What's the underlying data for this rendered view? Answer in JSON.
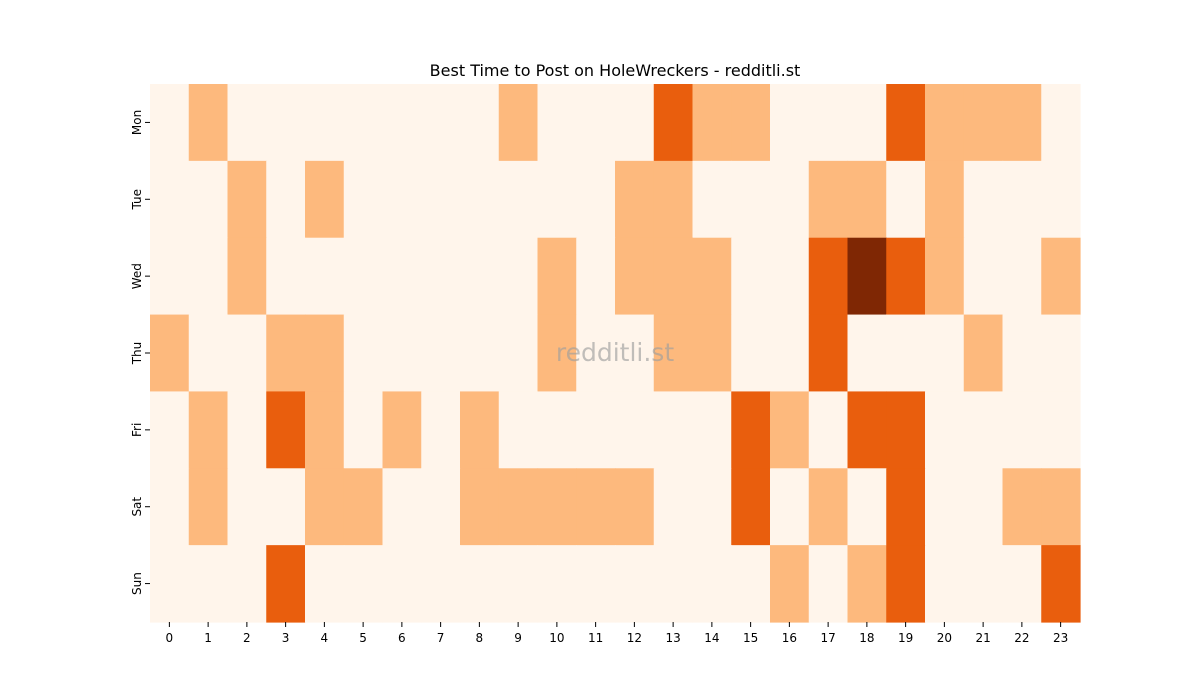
{
  "chart_data": {
    "type": "heatmap",
    "title": "Best Time to Post on HoleWreckers - redditli.st",
    "xlabel": "",
    "ylabel": "",
    "x_categories": [
      "0",
      "1",
      "2",
      "3",
      "4",
      "5",
      "6",
      "7",
      "8",
      "9",
      "10",
      "11",
      "12",
      "13",
      "14",
      "15",
      "16",
      "17",
      "18",
      "19",
      "20",
      "21",
      "22",
      "23"
    ],
    "y_categories": [
      "Mon",
      "Tue",
      "Wed",
      "Thu",
      "Fri",
      "Sat",
      "Sun"
    ],
    "values": [
      [
        0,
        1,
        0,
        0,
        0,
        0,
        0,
        0,
        0,
        1,
        0,
        0,
        0,
        2,
        1,
        1,
        0,
        0,
        0,
        2,
        1,
        1,
        1,
        0
      ],
      [
        0,
        0,
        1,
        0,
        1,
        0,
        0,
        0,
        0,
        0,
        0,
        0,
        1,
        1,
        0,
        0,
        0,
        1,
        1,
        0,
        1,
        0,
        0,
        0
      ],
      [
        0,
        0,
        1,
        0,
        0,
        0,
        0,
        0,
        0,
        0,
        1,
        0,
        1,
        1,
        1,
        0,
        0,
        2,
        3,
        2,
        1,
        0,
        0,
        1
      ],
      [
        1,
        0,
        0,
        1,
        1,
        0,
        0,
        0,
        0,
        0,
        1,
        0,
        0,
        1,
        1,
        0,
        0,
        2,
        0,
        0,
        0,
        1,
        0,
        0
      ],
      [
        0,
        1,
        0,
        2,
        1,
        0,
        1,
        0,
        1,
        0,
        0,
        0,
        0,
        0,
        0,
        2,
        1,
        0,
        2,
        2,
        0,
        0,
        0,
        0
      ],
      [
        0,
        1,
        0,
        0,
        1,
        1,
        0,
        0,
        1,
        1,
        1,
        1,
        1,
        0,
        0,
        2,
        0,
        1,
        0,
        2,
        0,
        0,
        1,
        1
      ],
      [
        0,
        0,
        0,
        2,
        0,
        0,
        0,
        0,
        0,
        0,
        0,
        0,
        0,
        0,
        0,
        0,
        1,
        0,
        1,
        2,
        0,
        0,
        0,
        2
      ]
    ],
    "value_range": [
      0,
      3
    ],
    "colormap": "Oranges",
    "level_colors": [
      "#fff5eb",
      "#fdb97d",
      "#e95e0d",
      "#7f2704"
    ],
    "grid": false,
    "legend": "none",
    "watermark": "redditli.st"
  }
}
